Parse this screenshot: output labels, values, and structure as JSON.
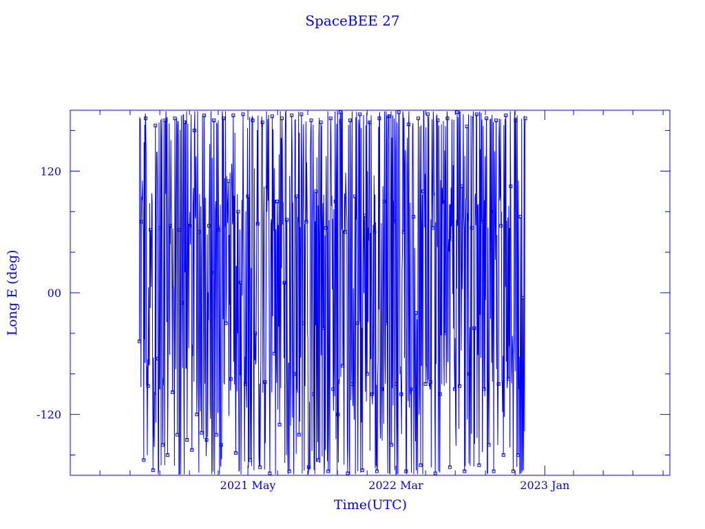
{
  "chart_data": {
    "type": "line",
    "title": "SpaceBEE 27",
    "xlabel": "Time(UTC)",
    "ylabel": "Long E (deg)",
    "x_scale": "time",
    "xlim": [
      "2020-05-01",
      "2023-09-15"
    ],
    "ylim": [
      -180,
      180
    ],
    "x_ticks": [
      {
        "date": "2021-05-01",
        "label": "2021 May"
      },
      {
        "date": "2022-03-01",
        "label": "2022 Mar"
      },
      {
        "date": "2023-01-01",
        "label": "2023 Jan"
      }
    ],
    "y_ticks": [
      {
        "value": 120,
        "label": "120"
      },
      {
        "value": 0,
        "label": "00"
      },
      {
        "value": -120,
        "label": "-120"
      }
    ],
    "data_start": "2020-09-20",
    "data_end": "2022-11-22",
    "grid": false,
    "color": "#0000ff",
    "series": [
      {
        "marker": "square",
        "points": [
          [
            "2020-09-20",
            -48
          ],
          [
            "2020-09-24",
            70
          ],
          [
            "2020-09-29",
            -165
          ],
          [
            "2020-10-03",
            172
          ],
          [
            "2020-10-08",
            -92
          ],
          [
            "2020-10-13",
            62
          ],
          [
            "2020-10-18",
            -175
          ],
          [
            "2020-10-23",
            165
          ],
          [
            "2020-10-28",
            -65
          ],
          [
            "2020-11-02",
            64
          ],
          [
            "2020-11-07",
            -150
          ],
          [
            "2020-11-12",
            170
          ],
          [
            "2020-11-17",
            -160
          ],
          [
            "2020-11-22",
            66
          ],
          [
            "2020-11-27",
            -98
          ],
          [
            "2020-12-02",
            172
          ],
          [
            "2020-12-07",
            -140
          ],
          [
            "2020-12-12",
            62
          ],
          [
            "2020-12-17",
            -10
          ],
          [
            "2020-12-22",
            168
          ],
          [
            "2020-12-27",
            -145
          ],
          [
            "2021-01-01",
            66
          ],
          [
            "2021-01-06",
            -155
          ],
          [
            "2021-01-11",
            160
          ],
          [
            "2021-01-16",
            -120
          ],
          [
            "2021-01-21",
            60
          ],
          [
            "2021-01-26",
            -138
          ],
          [
            "2021-01-31",
            175
          ],
          [
            "2021-02-05",
            -145
          ],
          [
            "2021-02-10",
            66
          ],
          [
            "2021-02-15",
            20
          ],
          [
            "2021-02-20",
            170
          ],
          [
            "2021-02-25",
            -140
          ],
          [
            "2021-03-02",
            62
          ],
          [
            "2021-03-07",
            -150
          ],
          [
            "2021-03-12",
            172
          ],
          [
            "2021-03-17",
            -30
          ],
          [
            "2021-03-22",
            110
          ],
          [
            "2021-03-27",
            -85
          ],
          [
            "2021-04-01",
            175
          ],
          [
            "2021-04-06",
            -158
          ],
          [
            "2021-04-11",
            80
          ],
          [
            "2021-04-16",
            10
          ],
          [
            "2021-04-21",
            176
          ],
          [
            "2021-04-26",
            -90
          ],
          [
            "2021-05-01",
            95
          ],
          [
            "2021-05-06",
            -165
          ],
          [
            "2021-05-11",
            170
          ],
          [
            "2021-05-16",
            -40
          ],
          [
            "2021-05-21",
            68
          ],
          [
            "2021-05-26",
            -172
          ],
          [
            "2021-05-31",
            168
          ],
          [
            "2021-06-05",
            -88
          ],
          [
            "2021-06-10",
            104
          ],
          [
            "2021-06-15",
            -178
          ],
          [
            "2021-06-20",
            174
          ],
          [
            "2021-06-25",
            -60
          ],
          [
            "2021-06-30",
            90
          ],
          [
            "2021-07-05",
            -130
          ],
          [
            "2021-07-10",
            172
          ],
          [
            "2021-07-15",
            10
          ],
          [
            "2021-07-20",
            72
          ],
          [
            "2021-07-25",
            -176
          ],
          [
            "2021-07-30",
            175
          ],
          [
            "2021-08-04",
            -80
          ],
          [
            "2021-08-09",
            95
          ],
          [
            "2021-08-14",
            -140
          ],
          [
            "2021-08-19",
            176
          ],
          [
            "2021-08-24",
            -30
          ],
          [
            "2021-08-29",
            70
          ],
          [
            "2021-09-03",
            -172
          ],
          [
            "2021-09-08",
            170
          ],
          [
            "2021-09-13",
            -100
          ],
          [
            "2021-09-18",
            100
          ],
          [
            "2021-09-23",
            -165
          ],
          [
            "2021-09-28",
            168
          ],
          [
            "2021-10-03",
            -35
          ],
          [
            "2021-10-08",
            64
          ],
          [
            "2021-10-13",
            -176
          ],
          [
            "2021-10-18",
            172
          ],
          [
            "2021-10-23",
            -95
          ],
          [
            "2021-10-28",
            90
          ],
          [
            "2021-11-02",
            -120
          ],
          [
            "2021-11-07",
            178
          ],
          [
            "2021-11-12",
            -72
          ],
          [
            "2021-11-17",
            60
          ],
          [
            "2021-11-22",
            -178
          ],
          [
            "2021-11-27",
            170
          ],
          [
            "2021-12-02",
            -90
          ],
          [
            "2021-12-07",
            95
          ],
          [
            "2021-12-12",
            -30
          ],
          [
            "2021-12-17",
            176
          ],
          [
            "2021-12-22",
            -175
          ],
          [
            "2021-12-27",
            76
          ],
          [
            "2022-01-01",
            -80
          ],
          [
            "2022-01-06",
            168
          ],
          [
            "2022-01-11",
            -100
          ],
          [
            "2022-01-16",
            60
          ],
          [
            "2022-01-21",
            -176
          ],
          [
            "2022-01-26",
            172
          ],
          [
            "2022-01-31",
            -95
          ],
          [
            "2022-02-05",
            90
          ],
          [
            "2022-02-10",
            -30
          ],
          [
            "2022-02-15",
            174
          ],
          [
            "2022-02-20",
            -150
          ],
          [
            "2022-02-25",
            70
          ],
          [
            "2022-03-02",
            -90
          ],
          [
            "2022-03-07",
            178
          ],
          [
            "2022-03-12",
            -100
          ],
          [
            "2022-03-17",
            60
          ],
          [
            "2022-03-22",
            -176
          ],
          [
            "2022-03-27",
            166
          ],
          [
            "2022-04-01",
            -95
          ],
          [
            "2022-04-06",
            75
          ],
          [
            "2022-04-11",
            -20
          ],
          [
            "2022-04-16",
            172
          ],
          [
            "2022-04-21",
            -170
          ],
          [
            "2022-04-26",
            100
          ],
          [
            "2022-05-01",
            -90
          ],
          [
            "2022-05-06",
            176
          ],
          [
            "2022-05-11",
            -88
          ],
          [
            "2022-05-16",
            64
          ],
          [
            "2022-05-21",
            -178
          ],
          [
            "2022-05-26",
            170
          ],
          [
            "2022-05-31",
            -100
          ],
          [
            "2022-06-05",
            90
          ],
          [
            "2022-06-10",
            -40
          ],
          [
            "2022-06-15",
            172
          ],
          [
            "2022-06-20",
            -172
          ],
          [
            "2022-06-25",
            70
          ],
          [
            "2022-06-30",
            -95
          ],
          [
            "2022-07-05",
            178
          ],
          [
            "2022-07-10",
            -92
          ],
          [
            "2022-07-15",
            105
          ],
          [
            "2022-07-20",
            -176
          ],
          [
            "2022-07-25",
            164
          ],
          [
            "2022-07-30",
            -80
          ],
          [
            "2022-08-04",
            64
          ],
          [
            "2022-08-09",
            -35
          ],
          [
            "2022-08-14",
            176
          ],
          [
            "2022-08-19",
            -170
          ],
          [
            "2022-08-24",
            70
          ],
          [
            "2022-08-29",
            -95
          ],
          [
            "2022-09-03",
            172
          ],
          [
            "2022-09-08",
            -150
          ],
          [
            "2022-09-13",
            80
          ],
          [
            "2022-09-18",
            -176
          ],
          [
            "2022-09-23",
            170
          ],
          [
            "2022-09-28",
            -90
          ],
          [
            "2022-10-03",
            66
          ],
          [
            "2022-10-08",
            -160
          ],
          [
            "2022-10-13",
            175
          ],
          [
            "2022-10-18",
            -85
          ],
          [
            "2022-10-23",
            105
          ],
          [
            "2022-10-28",
            -176
          ],
          [
            "2022-11-02",
            170
          ],
          [
            "2022-11-07",
            -160
          ],
          [
            "2022-11-12",
            75
          ],
          [
            "2022-11-17",
            -5
          ],
          [
            "2022-11-22",
            172
          ]
        ]
      }
    ]
  }
}
